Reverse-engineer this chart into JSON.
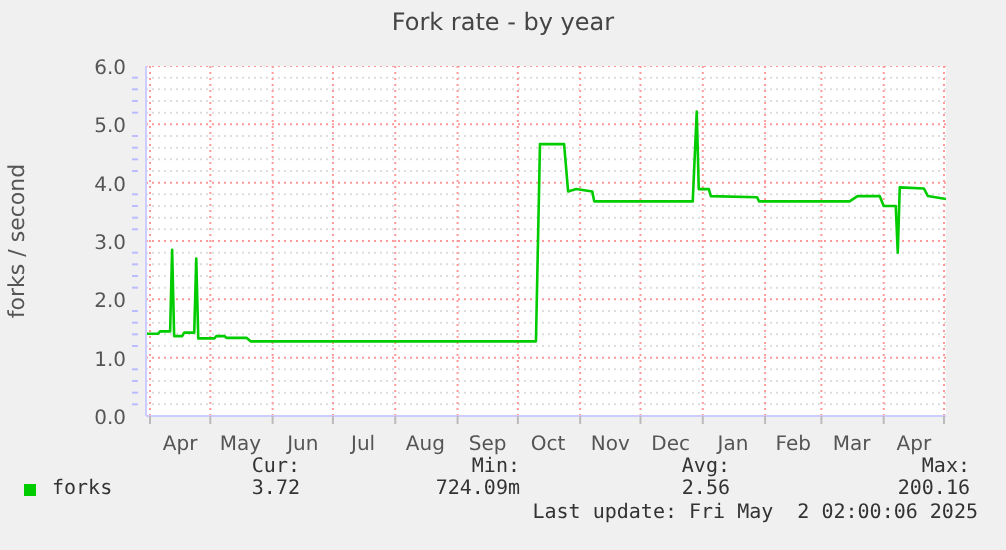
{
  "chart_data": {
    "type": "line",
    "title": "Fork rate - by year",
    "ylabel": "forks / second",
    "x": [
      "2024-03-30",
      "2024-04-05",
      "2024-04-06",
      "2024-04-11",
      "2024-04-12",
      "2024-04-13",
      "2024-04-17",
      "2024-04-18",
      "2024-04-23",
      "2024-04-24",
      "2024-04-25",
      "2024-05-03",
      "2024-05-04",
      "2024-05-08",
      "2024-05-09",
      "2024-05-19",
      "2024-05-21",
      "2024-10-10",
      "2024-10-12",
      "2024-10-24",
      "2024-10-26",
      "2024-10-30",
      "2024-11-07",
      "2024-11-08",
      "2024-12-27",
      "2024-12-29",
      "2024-12-30",
      "2025-01-04",
      "2025-01-05",
      "2025-01-28",
      "2025-01-29",
      "2025-03-15",
      "2025-03-19",
      "2025-03-30",
      "2025-04-01",
      "2025-04-07",
      "2025-04-08",
      "2025-04-09",
      "2025-04-21",
      "2025-04-23",
      "2025-05-02"
    ],
    "series": [
      {
        "name": "forks",
        "color": "#00cc00",
        "values": [
          1.41,
          1.41,
          1.45,
          1.45,
          2.85,
          1.37,
          1.37,
          1.43,
          1.43,
          2.7,
          1.33,
          1.33,
          1.37,
          1.37,
          1.34,
          1.34,
          1.28,
          1.28,
          4.66,
          4.66,
          3.85,
          3.89,
          3.85,
          3.68,
          3.68,
          5.22,
          3.89,
          3.89,
          3.77,
          3.75,
          3.68,
          3.68,
          3.77,
          3.77,
          3.6,
          3.6,
          2.8,
          3.92,
          3.9,
          3.77,
          3.72
        ]
      }
    ],
    "xlim": [
      "2024-03-30",
      "2025-05-02"
    ],
    "xticks": [
      {
        "value": "2024-04-01",
        "label": null
      },
      {
        "value": "2024-04-16",
        "label": "Apr"
      },
      {
        "value": "2024-05-01",
        "label": null
      },
      {
        "value": "2024-05-16",
        "label": "May"
      },
      {
        "value": "2024-06-01",
        "label": null
      },
      {
        "value": "2024-06-16",
        "label": "Jun"
      },
      {
        "value": "2024-07-01",
        "label": null
      },
      {
        "value": "2024-07-16",
        "label": "Jul"
      },
      {
        "value": "2024-08-01",
        "label": null
      },
      {
        "value": "2024-08-16",
        "label": "Aug"
      },
      {
        "value": "2024-09-01",
        "label": null
      },
      {
        "value": "2024-09-16",
        "label": "Sep"
      },
      {
        "value": "2024-10-01",
        "label": null
      },
      {
        "value": "2024-10-16",
        "label": "Oct"
      },
      {
        "value": "2024-11-01",
        "label": null
      },
      {
        "value": "2024-11-16",
        "label": "Nov"
      },
      {
        "value": "2024-12-01",
        "label": null
      },
      {
        "value": "2024-12-16",
        "label": "Dec"
      },
      {
        "value": "2025-01-01",
        "label": null
      },
      {
        "value": "2025-01-16",
        "label": "Jan"
      },
      {
        "value": "2025-02-01",
        "label": null
      },
      {
        "value": "2025-02-15",
        "label": "Feb"
      },
      {
        "value": "2025-03-01",
        "label": null
      },
      {
        "value": "2025-03-16",
        "label": "Mar"
      },
      {
        "value": "2025-04-01",
        "label": null
      },
      {
        "value": "2025-04-16",
        "label": "Apr"
      },
      {
        "value": "2025-05-01",
        "label": null
      }
    ],
    "ylim": [
      0,
      6
    ],
    "yticks": [
      {
        "value": 0,
        "label": "0.0"
      },
      {
        "value": 0.2,
        "label": null
      },
      {
        "value": 0.4,
        "label": null
      },
      {
        "value": 0.6,
        "label": null
      },
      {
        "value": 0.8,
        "label": null
      },
      {
        "value": 1,
        "label": "1.0"
      },
      {
        "value": 1.2,
        "label": null
      },
      {
        "value": 1.4,
        "label": null
      },
      {
        "value": 1.6,
        "label": null
      },
      {
        "value": 1.8,
        "label": null
      },
      {
        "value": 2,
        "label": "2.0"
      },
      {
        "value": 2.2,
        "label": null
      },
      {
        "value": 2.4,
        "label": null
      },
      {
        "value": 2.6,
        "label": null
      },
      {
        "value": 2.8,
        "label": null
      },
      {
        "value": 3,
        "label": "3.0"
      },
      {
        "value": 3.2,
        "label": null
      },
      {
        "value": 3.4,
        "label": null
      },
      {
        "value": 3.6,
        "label": null
      },
      {
        "value": 3.8,
        "label": null
      },
      {
        "value": 4,
        "label": "4.0"
      },
      {
        "value": 4.2,
        "label": null
      },
      {
        "value": 4.4,
        "label": null
      },
      {
        "value": 4.6,
        "label": null
      },
      {
        "value": 4.8,
        "label": null
      },
      {
        "value": 5,
        "label": "5.0"
      },
      {
        "value": 5.2,
        "label": null
      },
      {
        "value": 5.4,
        "label": null
      },
      {
        "value": 5.6,
        "label": null
      },
      {
        "value": 5.8,
        "label": null
      },
      {
        "value": 6,
        "label": "6.0"
      }
    ],
    "grid": true,
    "legend": "bottom left",
    "marker": "none",
    "line_style": "solid",
    "annotations": [
      "Cur:",
      "Min:",
      "Avg:",
      "Max:",
      "3.72",
      "724.09m",
      "2.56",
      "200.16",
      "Last update: Fri May  2 02:00:06 2025"
    ]
  }
}
